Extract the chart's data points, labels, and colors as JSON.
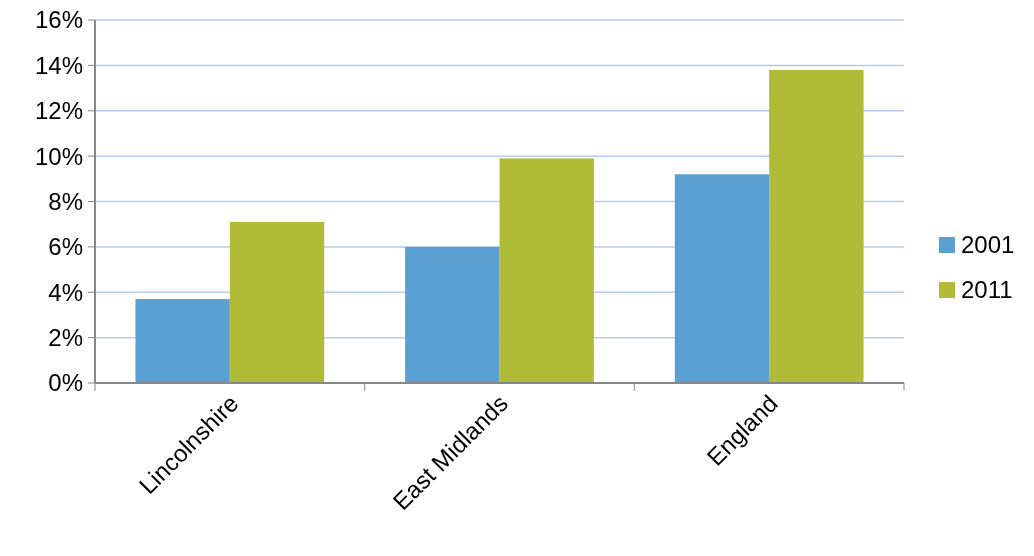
{
  "chart_data": {
    "type": "bar",
    "categories": [
      "Lincolnshire",
      "East Midlands",
      "England"
    ],
    "series": [
      {
        "name": "2001",
        "color": "#5aa0d2",
        "values": [
          3.7,
          6.0,
          9.2
        ]
      },
      {
        "name": "2011",
        "color": "#b0bb38",
        "values": [
          7.1,
          9.9,
          13.8
        ]
      }
    ],
    "ylim": [
      0,
      16
    ],
    "yticks": [
      {
        "value": 0,
        "label": "0%"
      },
      {
        "value": 2,
        "label": "2%"
      },
      {
        "value": 4,
        "label": "4%"
      },
      {
        "value": 6,
        "label": "6%"
      },
      {
        "value": 8,
        "label": "8%"
      },
      {
        "value": 10,
        "label": "10%"
      },
      {
        "value": 12,
        "label": "12%"
      },
      {
        "value": 14,
        "label": "14%"
      },
      {
        "value": 16,
        "label": "16%"
      }
    ],
    "grid": "y",
    "legend": "right"
  }
}
